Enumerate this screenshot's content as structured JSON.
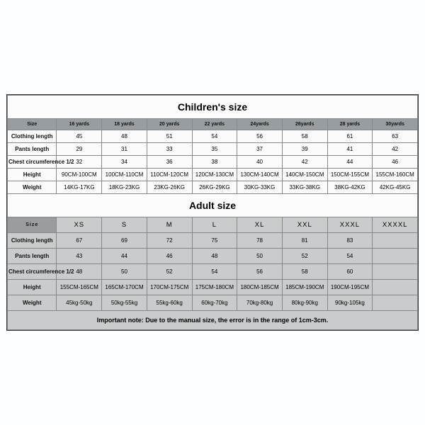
{
  "children": {
    "title": "Children's size",
    "headers": [
      "Size",
      "16 yards",
      "18 yards",
      "20 yards",
      "22 yards",
      "24yards",
      "26yards",
      "28 yards",
      "30yards"
    ],
    "rows": [
      {
        "label": "Clothing length",
        "values": [
          "45",
          "48",
          "51",
          "54",
          "56",
          "58",
          "61",
          "63"
        ]
      },
      {
        "label": "Pants length",
        "values": [
          "29",
          "31",
          "33",
          "35",
          "37",
          "39",
          "41",
          "42"
        ]
      },
      {
        "label": "Chest circumference 1/2",
        "values": [
          "32",
          "34",
          "36",
          "38",
          "40",
          "42",
          "44",
          "46"
        ]
      },
      {
        "label": "Height",
        "values": [
          "90CM-100CM",
          "100CM-110CM",
          "110CM-120CM",
          "120CM-130CM",
          "130CM-140CM",
          "140CM-150CM",
          "150CM-155CM",
          "155CM-160CM"
        ]
      },
      {
        "label": "Weight",
        "values": [
          "14KG-17KG",
          "18KG-23KG",
          "23KG-26KG",
          "26KG-29KG",
          "30KG-33KG",
          "33KG-38KG",
          "38KG-42KG",
          "42KG-45KG"
        ]
      }
    ]
  },
  "adult": {
    "title": "Adult size",
    "headers": [
      "Size",
      "XS",
      "S",
      "M",
      "L",
      "XL",
      "XXL",
      "XXXL",
      "XXXXL"
    ],
    "rows": [
      {
        "label": "Clothing length",
        "values": [
          "67",
          "69",
          "72",
          "75",
          "78",
          "81",
          "83",
          ""
        ]
      },
      {
        "label": "Pants length",
        "values": [
          "43",
          "44",
          "46",
          "48",
          "50",
          "52",
          "54",
          ""
        ]
      },
      {
        "label": "Chest circumference 1/2",
        "values": [
          "48",
          "50",
          "52",
          "54",
          "56",
          "58",
          "60",
          ""
        ]
      },
      {
        "label": "Height",
        "values": [
          "155CM-165CM",
          "165CM-170CM",
          "170CM-175CM",
          "175CM-180CM",
          "180CM-185CM",
          "185CM-190CM",
          "190CM-195CM",
          ""
        ]
      },
      {
        "label": "Weight",
        "values": [
          "45kg-50kg",
          "50kg-55kg",
          "55kg-60kg",
          "60kg-70kg",
          "70kg-80kg",
          "80kg-90kg",
          "90kg-105kg",
          ""
        ]
      }
    ]
  },
  "note": "Important note: Due to the manual size, the error is in the range of 1cm-3cm.",
  "style": {
    "page_bg": "#fdfeff",
    "table_bg": "#fbfbfb",
    "header_bg": "#999d9f",
    "adult_bg": "#c9cccc",
    "border_color": "#888888",
    "title_fontsize": 14,
    "head_fontsize": 7,
    "cell_fontsize": 8,
    "note_fontsize": 9
  }
}
